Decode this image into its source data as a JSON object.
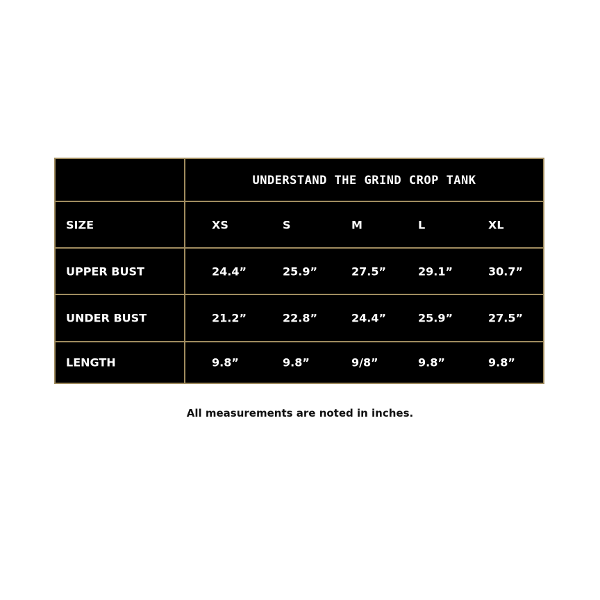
{
  "title": "UNDERSTAND THE GRIND CROP TANK",
  "border_color": "#a08c5f",
  "rows": [
    {
      "label": "SIZE",
      "values": [
        "XS",
        "S",
        "M",
        "L",
        "XL"
      ]
    },
    {
      "label": "UPPER BUST",
      "values": [
        "24.4”",
        "25.9”",
        "27.5”",
        "29.1”",
        "30.7”"
      ]
    },
    {
      "label": "UNDER BUST",
      "values": [
        "21.2”",
        "22.8”",
        "24.4”",
        "25.9”",
        "27.5”"
      ]
    },
    {
      "label": "LENGTH",
      "values": [
        "9.8”",
        "9.8”",
        "9/8”",
        "9.8”",
        "9.8”"
      ]
    }
  ],
  "note": "All measurements are noted in inches."
}
